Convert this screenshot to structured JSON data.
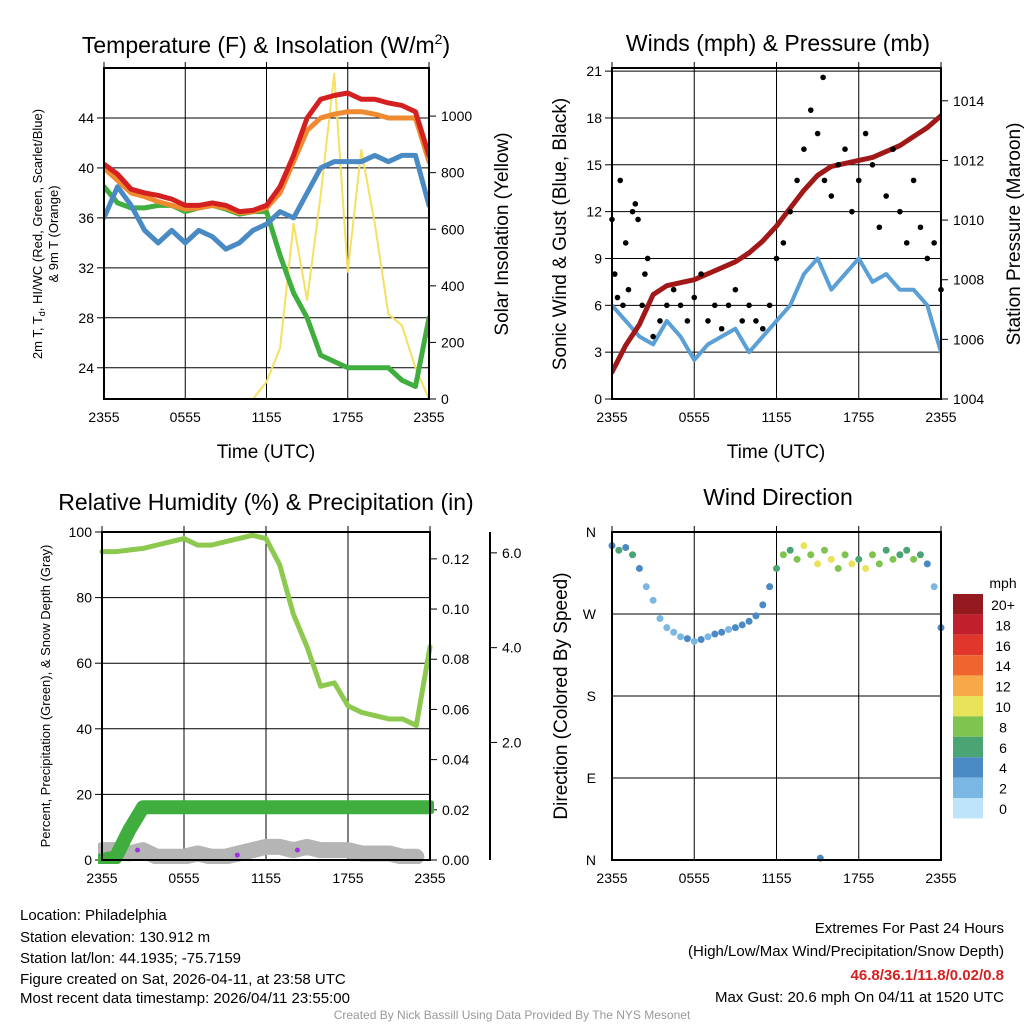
{
  "colors": {
    "temp_hiwc": "#d42020",
    "temp_9m": "#f08a30",
    "dewpoint": "#3fae3f",
    "scarlet_blue": "#4a8ac4",
    "insolation": "#f5e060",
    "sonic_wind": "#5a9fd6",
    "gust": "#000000",
    "pressure": "#a01818",
    "rh": "#8dc94f",
    "precip": "#3fae3f",
    "snow_depth": "#b5b5b5",
    "snow_marker": "#a030e0"
  },
  "footer": {
    "location": "Location: Philadelphia",
    "elevation": "Station elevation: 130.912 m",
    "latlon": "Station lat/lon: 44.1935; -75.7159",
    "created": "Figure created on Sat, 2026-04-11, at 23:58 UTC",
    "recent": "Most recent data timestamp: 2026/04/11 23:55:00",
    "extremes_title": "Extremes For Past 24 Hours",
    "extremes_sub": "(High/Low/Max Wind/Precipitation/Snow Depth)",
    "extremes_values": "46.8/36.1/11.8/0.02/0.8",
    "max_gust": "Max Gust: 20.6 mph On 04/11 at 1520 UTC",
    "credit": "Created By Nick Bassill Using Data Provided By The NYS Mesonet"
  },
  "chart_data": [
    {
      "type": "line",
      "title": "Temperature (F) & Insolation (W/m",
      "title_sup": "2",
      "title_end": ")",
      "xlabel": "Time (UTC)",
      "ylabel_line1": "2m T, T",
      "ylabel_sub": "d",
      "ylabel_line1_end": ", HI/WC (Red, Green, Scarlet/Blue)",
      "ylabel_line2": "& 9m T (Orange)",
      "y2label": "Solar Insolation (Yellow)",
      "x_ticks": [
        "2355",
        "0555",
        "1155",
        "1755",
        "2355"
      ],
      "y_ticks": [
        24,
        28,
        32,
        36,
        40,
        44
      ],
      "y2_ticks": [
        0,
        200,
        400,
        600,
        800,
        1000
      ],
      "ylim": [
        21.5,
        48
      ],
      "y2lim": [
        0,
        1170
      ],
      "x_hours": [
        0,
        1,
        2,
        3,
        4,
        5,
        6,
        7,
        8,
        9,
        10,
        11,
        12,
        13,
        14,
        15,
        16,
        17,
        18,
        19,
        20,
        21,
        22,
        23,
        24
      ],
      "series": [
        {
          "name": "Insolation",
          "axis": "right",
          "color_key": "insolation",
          "values": [
            0,
            0,
            0,
            0,
            0,
            0,
            0,
            0,
            0,
            0,
            0,
            0,
            60,
            180,
            620,
            350,
            720,
            1150,
            450,
            880,
            620,
            300,
            260,
            110,
            0
          ]
        },
        {
          "name": "Dewpoint",
          "axis": "left",
          "color_key": "dewpoint",
          "values": [
            38.5,
            37.2,
            36.8,
            36.8,
            37,
            37,
            36.5,
            36.8,
            37,
            36.7,
            36.3,
            36.5,
            36.5,
            33,
            30,
            28,
            25,
            24.5,
            24,
            24,
            24,
            24,
            23,
            22.5,
            28
          ]
        },
        {
          "name": "Scarlet/Blue",
          "axis": "left",
          "color_key": "scarlet_blue",
          "values": [
            36,
            38.5,
            37,
            35,
            34,
            35,
            34,
            35,
            34.5,
            33.5,
            34,
            35,
            35.5,
            36.5,
            36,
            38,
            40,
            40.5,
            40.5,
            40.5,
            41,
            40.5,
            41,
            41,
            37
          ]
        },
        {
          "name": "9m T",
          "axis": "left",
          "color_key": "temp_9m",
          "values": [
            40,
            39,
            38,
            37.7,
            37.3,
            37,
            36.7,
            36.8,
            37,
            36.8,
            36.4,
            36.5,
            36.8,
            38,
            40.5,
            43,
            44,
            44.3,
            44.5,
            44.5,
            44.3,
            44,
            44,
            44,
            40.5
          ]
        },
        {
          "name": "HI/WC",
          "axis": "left",
          "color_key": "temp_hiwc",
          "values": [
            40.3,
            39.5,
            38.3,
            38,
            37.8,
            37.5,
            37,
            37,
            37.2,
            37,
            36.5,
            36.6,
            37,
            38.5,
            41,
            44,
            45.5,
            45.8,
            46,
            45.5,
            45.5,
            45.2,
            45,
            44.5,
            41
          ]
        }
      ]
    },
    {
      "type": "line",
      "title": "Winds (mph) & Pressure (mb)",
      "xlabel": "Time (UTC)",
      "ylabel": "Sonic Wind & Gust (Blue, Black)",
      "y2label": "Station Pressure (Maroon)",
      "x_ticks": [
        "2355",
        "0555",
        "1155",
        "1755",
        "2355"
      ],
      "y_ticks": [
        0,
        3,
        6,
        9,
        12,
        15,
        18,
        21
      ],
      "y2_ticks": [
        1004,
        1006,
        1008,
        1010,
        1012,
        1014
      ],
      "ylim": [
        0,
        21.2
      ],
      "y2lim": [
        1004,
        1015.1
      ],
      "x_hours": [
        0,
        1,
        2,
        3,
        4,
        5,
        6,
        7,
        8,
        9,
        10,
        11,
        12,
        13,
        14,
        15,
        16,
        17,
        18,
        19,
        20,
        21,
        22,
        23,
        24
      ],
      "wind": [
        6,
        5,
        4,
        3.5,
        5,
        4,
        2.5,
        3.5,
        4,
        4.5,
        3,
        4,
        5,
        6,
        8,
        9,
        7,
        8,
        9,
        7.5,
        8,
        7,
        7,
        6,
        3
      ],
      "pressure": [
        1004.9,
        1005.8,
        1006.5,
        1007.5,
        1007.8,
        1007.9,
        1008,
        1008.2,
        1008.4,
        1008.6,
        1008.9,
        1009.3,
        1009.8,
        1010.4,
        1011,
        1011.5,
        1011.8,
        1011.9,
        1012,
        1012.1,
        1012.3,
        1012.5,
        1012.8,
        1013.1,
        1013.5
      ],
      "gusts": [
        [
          0,
          11.5
        ],
        [
          0.2,
          8
        ],
        [
          0.4,
          6.5
        ],
        [
          0.6,
          14
        ],
        [
          0.8,
          6
        ],
        [
          1,
          10
        ],
        [
          1.2,
          7
        ],
        [
          1.5,
          12
        ],
        [
          1.7,
          12.5
        ],
        [
          1.9,
          11.5
        ],
        [
          2.2,
          6
        ],
        [
          2.4,
          8
        ],
        [
          2.6,
          9
        ],
        [
          3,
          4
        ],
        [
          3.5,
          5
        ],
        [
          4,
          6
        ],
        [
          4.5,
          7
        ],
        [
          5,
          6
        ],
        [
          5.5,
          5
        ],
        [
          6,
          6.5
        ],
        [
          6.5,
          8
        ],
        [
          7,
          5
        ],
        [
          7.5,
          6
        ],
        [
          8,
          4.5
        ],
        [
          8.5,
          6
        ],
        [
          9,
          7
        ],
        [
          9.5,
          5
        ],
        [
          10,
          6
        ],
        [
          10.5,
          5
        ],
        [
          11,
          4.5
        ],
        [
          11.5,
          6
        ],
        [
          12,
          9
        ],
        [
          12.5,
          10
        ],
        [
          13,
          12
        ],
        [
          13.5,
          14
        ],
        [
          14,
          16
        ],
        [
          14.5,
          18.5
        ],
        [
          15.4,
          20.6
        ],
        [
          15,
          17
        ],
        [
          15.5,
          14
        ],
        [
          16,
          13
        ],
        [
          16.5,
          15
        ],
        [
          17,
          16
        ],
        [
          17.5,
          12
        ],
        [
          18,
          14
        ],
        [
          18.5,
          17
        ],
        [
          19,
          15
        ],
        [
          19.5,
          11
        ],
        [
          20,
          13
        ],
        [
          20.5,
          16
        ],
        [
          21,
          12
        ],
        [
          21.5,
          10
        ],
        [
          22,
          14
        ],
        [
          22.5,
          11
        ],
        [
          23,
          9
        ],
        [
          23.5,
          10
        ],
        [
          24,
          7
        ]
      ]
    },
    {
      "type": "line",
      "title": "Relative Humidity (%) & Precipitation (in)",
      "ylabel": "Percent, Precipitation (Green), & Snow Depth (Gray)",
      "x_ticks": [
        "2355",
        "0555",
        "1155",
        "1755",
        "2355"
      ],
      "y_ticks": [
        0,
        20,
        40,
        60,
        80,
        100
      ],
      "y2_ticks": [
        "0.00",
        "0.02",
        "0.04",
        "0.06",
        "0.08",
        "0.10",
        "0.12"
      ],
      "y3_ticks": [
        "2.0",
        "4.0",
        "6.0"
      ],
      "ylim": [
        0,
        100
      ],
      "y2lim": [
        0,
        0.1307
      ],
      "y3lim": [
        -0.48,
        6.44
      ],
      "x_hours": [
        0,
        1,
        2,
        3,
        4,
        5,
        6,
        7,
        8,
        9,
        10,
        11,
        12,
        13,
        14,
        15,
        16,
        17,
        18,
        19,
        20,
        21,
        22,
        23,
        24
      ],
      "rh": [
        94,
        94,
        94.5,
        95,
        96,
        97,
        98,
        96,
        96,
        97,
        98,
        99,
        98,
        90,
        75,
        65,
        53,
        54,
        47,
        45,
        44,
        43,
        43,
        41,
        65
      ],
      "precip": [
        0,
        0.001,
        0.012,
        0.021,
        0.021,
        0.021,
        0.021,
        0.021,
        0.021,
        0.021,
        0.021,
        0.021,
        0.021,
        0.021,
        0.021,
        0.021,
        0.021,
        0.021,
        0.021,
        0.021,
        0.021,
        0.021,
        0.021,
        0.021,
        0.021
      ],
      "snow_depth_pct": [
        3,
        3,
        2,
        3,
        1,
        1,
        1,
        2,
        1,
        1,
        2,
        3,
        4,
        4,
        3,
        4,
        3,
        3,
        3,
        2,
        2,
        2,
        1,
        1,
        null
      ],
      "snow_markers": [
        [
          2.6,
          3
        ],
        [
          9.9,
          1.5
        ],
        [
          14.3,
          3
        ]
      ]
    },
    {
      "type": "scatter",
      "title": "Wind Direction",
      "ylabel": "Direction (Colored By Speed)",
      "x_ticks": [
        "2355",
        "0555",
        "1155",
        "1755",
        "2355"
      ],
      "y_ticks": [
        {
          "label": "N",
          "deg": 0
        },
        {
          "label": "E",
          "deg": 90
        },
        {
          "label": "S",
          "deg": 180
        },
        {
          "label": "W",
          "deg": 270
        },
        {
          "label": "N",
          "deg": 360
        }
      ],
      "ylim": [
        0,
        360
      ],
      "legend_title": "mph",
      "legend": [
        {
          "label": "0",
          "color": "#bde4f8"
        },
        {
          "label": "2",
          "color": "#7ab8e3"
        },
        {
          "label": "4",
          "color": "#4a8ac4"
        },
        {
          "label": "6",
          "color": "#4aa473"
        },
        {
          "label": "8",
          "color": "#7ec44f"
        },
        {
          "label": "10",
          "color": "#e8e35a"
        },
        {
          "label": "12",
          "color": "#f7a848"
        },
        {
          "label": "14",
          "color": "#f06430"
        },
        {
          "label": "16",
          "color": "#e1362b"
        },
        {
          "label": "18",
          "color": "#c11f2b"
        },
        {
          "label": "20+",
          "color": "#941a1f"
        }
      ],
      "points": [
        [
          0,
          345,
          5
        ],
        [
          0.5,
          340,
          6
        ],
        [
          1,
          343,
          5
        ],
        [
          1.5,
          335,
          7
        ],
        [
          2,
          320,
          4
        ],
        [
          2.5,
          300,
          3
        ],
        [
          3,
          285,
          3
        ],
        [
          3.5,
          265,
          2
        ],
        [
          4,
          255,
          3
        ],
        [
          4.5,
          250,
          2
        ],
        [
          5,
          245,
          3
        ],
        [
          5.5,
          243,
          4
        ],
        [
          6,
          240,
          3
        ],
        [
          6.5,
          242,
          4
        ],
        [
          7,
          245,
          3
        ],
        [
          7.5,
          248,
          4
        ],
        [
          8,
          250,
          4
        ],
        [
          8.5,
          253,
          3
        ],
        [
          9,
          255,
          4
        ],
        [
          9.5,
          258,
          4
        ],
        [
          10,
          262,
          5
        ],
        [
          10.5,
          268,
          4
        ],
        [
          11,
          280,
          4
        ],
        [
          11.5,
          300,
          5
        ],
        [
          12,
          320,
          6
        ],
        [
          12.5,
          335,
          8
        ],
        [
          13,
          340,
          7
        ],
        [
          13.5,
          330,
          9
        ],
        [
          14,
          345,
          10
        ],
        [
          14.5,
          335,
          9
        ],
        [
          15,
          325,
          11
        ],
        [
          15.5,
          340,
          8
        ],
        [
          16,
          330,
          10
        ],
        [
          16.5,
          320,
          9
        ],
        [
          17,
          335,
          8
        ],
        [
          17.5,
          325,
          10
        ],
        [
          18,
          330,
          7
        ],
        [
          18.5,
          320,
          10
        ],
        [
          19,
          335,
          9
        ],
        [
          19.5,
          325,
          8
        ],
        [
          20,
          340,
          7
        ],
        [
          20.5,
          330,
          9
        ],
        [
          21,
          335,
          6
        ],
        [
          21.5,
          340,
          7
        ],
        [
          22,
          330,
          8
        ],
        [
          22.5,
          335,
          6
        ],
        [
          23,
          325,
          5
        ],
        [
          23.5,
          300,
          3
        ],
        [
          24,
          255,
          4
        ],
        [
          15.2,
          2,
          4
        ]
      ]
    }
  ]
}
